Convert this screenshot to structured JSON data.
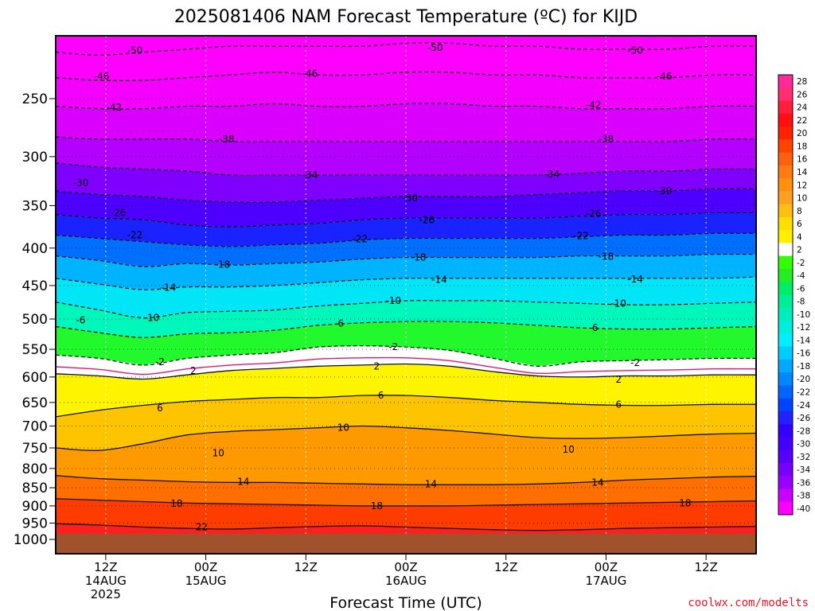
{
  "chart_data": {
    "type": "heatmap",
    "title": "2025081406 NAM Forecast Temperature (ºC) for KIJD",
    "xlabel": "Forecast Time (UTC)",
    "ylabel": "",
    "credit": "coolwx.com/modelts",
    "x_range_hours": [
      0,
      84
    ],
    "y_range_hPa": [
      1000,
      200
    ],
    "y_scale": "log",
    "y_ticks": [
      {
        "label": "250",
        "p": 250
      },
      {
        "label": "300",
        "p": 300
      },
      {
        "label": "350",
        "p": 350
      },
      {
        "label": "400",
        "p": 400
      },
      {
        "label": "450",
        "p": 450
      },
      {
        "label": "500",
        "p": 500
      },
      {
        "label": "550",
        "p": 550
      },
      {
        "label": "600",
        "p": 600
      },
      {
        "label": "650",
        "p": 650
      },
      {
        "label": "700",
        "p": 700
      },
      {
        "label": "750",
        "p": 750
      },
      {
        "label": "800",
        "p": 800
      },
      {
        "label": "850",
        "p": 850
      },
      {
        "label": "900",
        "p": 900
      },
      {
        "label": "950",
        "p": 950
      },
      {
        "label": "1000",
        "p": 1000
      }
    ],
    "x_ticks": [
      {
        "hour": 6,
        "lines": [
          "12Z",
          "14AUG",
          "2025"
        ]
      },
      {
        "hour": 18,
        "lines": [
          "00Z",
          "15AUG"
        ]
      },
      {
        "hour": 30,
        "lines": [
          "12Z"
        ]
      },
      {
        "hour": 42,
        "lines": [
          "00Z",
          "16AUG"
        ]
      },
      {
        "hour": 54,
        "lines": [
          "12Z"
        ]
      },
      {
        "hour": 66,
        "lines": [
          "00Z",
          "17AUG"
        ]
      },
      {
        "hour": 78,
        "lines": [
          "12Z"
        ]
      }
    ],
    "grid": true,
    "surface_pressure_hPa": 982,
    "colorbar": {
      "placement": "right",
      "labels": [
        "28",
        "26",
        "24",
        "22",
        "20",
        "18",
        "16",
        "14",
        "12",
        "10",
        "8",
        "6",
        "4",
        "2",
        "-2",
        "-4",
        "-6",
        "-8",
        "-10",
        "-12",
        "-14",
        "-16",
        "-18",
        "-20",
        "-22",
        "-24",
        "-26",
        "-28",
        "-30",
        "-32",
        "-34",
        "-36",
        "-38",
        "-40"
      ],
      "colors": [
        "#ff2a9a",
        "#ff3070",
        "#ff1e3c",
        "#ff1010",
        "#ff2200",
        "#ff4400",
        "#ff6010",
        "#ff7a10",
        "#ff9010",
        "#ffa020",
        "#ffbf10",
        "#ffdf00",
        "#fff000",
        "#ffffff",
        "#33ff00",
        "#22ee22",
        "#00ee66",
        "#00ee99",
        "#00eebb",
        "#00eedd",
        "#00eeff",
        "#00ccff",
        "#00aaff",
        "#0088ff",
        "#0066ff",
        "#0044ff",
        "#2222ff",
        "#3300ff",
        "#4400ff",
        "#5500ff",
        "#7700ff",
        "#9900ff",
        "#cc00ff",
        "#ff00ff"
      ]
    },
    "contours": [
      {
        "level": -50,
        "p": [
          216,
          218,
          216,
          214,
          212,
          212,
          212,
          212,
          210,
          210,
          212,
          212,
          214,
          214,
          214,
          212,
          212
        ]
      },
      {
        "level": -46,
        "p": [
          234,
          236,
          236,
          234,
          232,
          230,
          232,
          232,
          230,
          230,
          232,
          232,
          234,
          234,
          234,
          232,
          232
        ]
      },
      {
        "level": -42,
        "p": [
          256,
          258,
          258,
          256,
          256,
          254,
          256,
          256,
          254,
          254,
          256,
          256,
          258,
          258,
          258,
          256,
          256
        ]
      },
      {
        "level": -38,
        "p": [
          282,
          284,
          284,
          284,
          286,
          286,
          286,
          286,
          286,
          286,
          286,
          286,
          286,
          286,
          286,
          284,
          284
        ]
      },
      {
        "level": -34,
        "p": [
          306,
          310,
          312,
          314,
          318,
          318,
          318,
          318,
          318,
          318,
          318,
          318,
          316,
          314,
          314,
          312,
          312
        ]
      },
      {
        "level": -30,
        "p": [
          334,
          338,
          340,
          344,
          346,
          346,
          344,
          342,
          340,
          340,
          340,
          338,
          336,
          334,
          334,
          332,
          332
        ]
      },
      {
        "level": -26,
        "p": [
          360,
          364,
          366,
          372,
          374,
          372,
          370,
          366,
          364,
          364,
          364,
          364,
          362,
          360,
          360,
          358,
          358
        ]
      },
      {
        "level": -22,
        "p": [
          384,
          388,
          392,
          396,
          398,
          396,
          394,
          390,
          388,
          388,
          388,
          388,
          386,
          384,
          384,
          382,
          382
        ]
      },
      {
        "level": -18,
        "p": [
          410,
          416,
          424,
          420,
          422,
          420,
          418,
          414,
          412,
          412,
          412,
          412,
          410,
          410,
          410,
          408,
          408
        ]
      },
      {
        "level": -14,
        "p": [
          440,
          448,
          456,
          452,
          452,
          450,
          446,
          442,
          440,
          440,
          440,
          440,
          440,
          440,
          440,
          440,
          438
        ]
      },
      {
        "level": -10,
        "p": [
          474,
          486,
          498,
          490,
          488,
          486,
          480,
          476,
          472,
          472,
          472,
          474,
          476,
          478,
          478,
          476,
          474
        ]
      },
      {
        "level": -6,
        "p": [
          512,
          522,
          530,
          524,
          522,
          518,
          510,
          506,
          504,
          504,
          506,
          510,
          514,
          516,
          516,
          514,
          512
        ]
      },
      {
        "level": -2,
        "p": [
          560,
          566,
          578,
          566,
          560,
          556,
          546,
          544,
          546,
          552,
          566,
          580,
          572,
          570,
          568,
          566,
          566
        ]
      },
      {
        "level": 2,
        "p": [
          594,
          598,
          604,
          596,
          588,
          584,
          580,
          578,
          576,
          580,
          590,
          598,
          600,
          598,
          598,
          596,
          596
        ]
      },
      {
        "level": 6,
        "p": [
          680,
          666,
          656,
          648,
          644,
          640,
          640,
          636,
          636,
          640,
          646,
          650,
          654,
          656,
          656,
          654,
          654
        ]
      },
      {
        "level": 10,
        "p": [
          750,
          756,
          740,
          720,
          712,
          708,
          704,
          700,
          704,
          710,
          718,
          726,
          728,
          726,
          722,
          718,
          716
        ]
      },
      {
        "level": 14,
        "p": [
          818,
          826,
          830,
          834,
          836,
          836,
          838,
          840,
          842,
          842,
          842,
          840,
          836,
          830,
          826,
          822,
          820
        ]
      },
      {
        "level": 18,
        "p": [
          880,
          884,
          888,
          892,
          894,
          896,
          898,
          900,
          900,
          900,
          898,
          896,
          894,
          892,
          890,
          888,
          886
        ]
      },
      {
        "level": 22,
        "p": [
          952,
          956,
          962,
          966,
          968,
          964,
          960,
          958,
          962,
          966,
          970,
          972,
          970,
          966,
          964,
          962,
          960
        ]
      }
    ],
    "contour_labels": [
      {
        "text": "-50",
        "t": 9.5,
        "p": 215
      },
      {
        "text": "-50",
        "t": 45.5,
        "p": 213
      },
      {
        "text": "-50",
        "t": 69.5,
        "p": 215
      },
      {
        "text": "-46",
        "t": 5.5,
        "p": 233
      },
      {
        "text": "-46",
        "t": 30.5,
        "p": 231
      },
      {
        "text": "-46",
        "t": 73,
        "p": 233
      },
      {
        "text": "-42",
        "t": 7,
        "p": 257
      },
      {
        "text": "-42",
        "t": 64.5,
        "p": 255
      },
      {
        "text": "-38",
        "t": 20.5,
        "p": 284
      },
      {
        "text": "-38",
        "t": 66,
        "p": 284
      },
      {
        "text": "-34",
        "t": 30.5,
        "p": 318
      },
      {
        "text": "-34",
        "t": 59.5,
        "p": 317
      },
      {
        "text": "-30",
        "t": 3,
        "p": 326
      },
      {
        "text": "-30",
        "t": 42.5,
        "p": 342
      },
      {
        "text": "-30",
        "t": 73,
        "p": 334
      },
      {
        "text": "-26",
        "t": 7.5,
        "p": 358
      },
      {
        "text": "-26",
        "t": 44.5,
        "p": 366
      },
      {
        "text": "-26",
        "t": 64.5,
        "p": 359
      },
      {
        "text": "-22",
        "t": 9.5,
        "p": 384
      },
      {
        "text": "-22",
        "t": 36.5,
        "p": 389
      },
      {
        "text": "-22",
        "t": 63,
        "p": 385
      },
      {
        "text": "-18",
        "t": 20,
        "p": 421
      },
      {
        "text": "-18",
        "t": 43.5,
        "p": 412
      },
      {
        "text": "-18",
        "t": 66,
        "p": 411
      },
      {
        "text": "-14",
        "t": 13.5,
        "p": 453
      },
      {
        "text": "-14",
        "t": 46,
        "p": 442
      },
      {
        "text": "-14",
        "t": 69.5,
        "p": 441
      },
      {
        "text": "-10",
        "t": 11.5,
        "p": 498
      },
      {
        "text": "-10",
        "t": 40.5,
        "p": 472
      },
      {
        "text": "-10",
        "t": 67.5,
        "p": 476
      },
      {
        "text": "-6",
        "t": 3,
        "p": 502
      },
      {
        "text": "-6",
        "t": 34,
        "p": 507
      },
      {
        "text": "-6",
        "t": 64.5,
        "p": 514
      },
      {
        "text": "-2",
        "t": 12.5,
        "p": 572
      },
      {
        "text": "-2",
        "t": 40.5,
        "p": 546
      },
      {
        "text": "-2",
        "t": 69.5,
        "p": 574
      },
      {
        "text": "2",
        "t": 16.5,
        "p": 588
      },
      {
        "text": "2",
        "t": 38.5,
        "p": 580
      },
      {
        "text": "2",
        "t": 67.5,
        "p": 605
      },
      {
        "text": "6",
        "t": 12.5,
        "p": 662
      },
      {
        "text": "6",
        "t": 39,
        "p": 636
      },
      {
        "text": "6",
        "t": 67.5,
        "p": 654
      },
      {
        "text": "10",
        "t": 19.5,
        "p": 762
      },
      {
        "text": "10",
        "t": 34.5,
        "p": 704
      },
      {
        "text": "10",
        "t": 61.5,
        "p": 754
      },
      {
        "text": "14",
        "t": 22.5,
        "p": 834
      },
      {
        "text": "14",
        "t": 45,
        "p": 840
      },
      {
        "text": "14",
        "t": 65,
        "p": 836
      },
      {
        "text": "18",
        "t": 14.5,
        "p": 894
      },
      {
        "text": "18",
        "t": 38.5,
        "p": 900
      },
      {
        "text": "18",
        "t": 75.5,
        "p": 892
      },
      {
        "text": "22",
        "t": 17.5,
        "p": 962
      }
    ]
  }
}
